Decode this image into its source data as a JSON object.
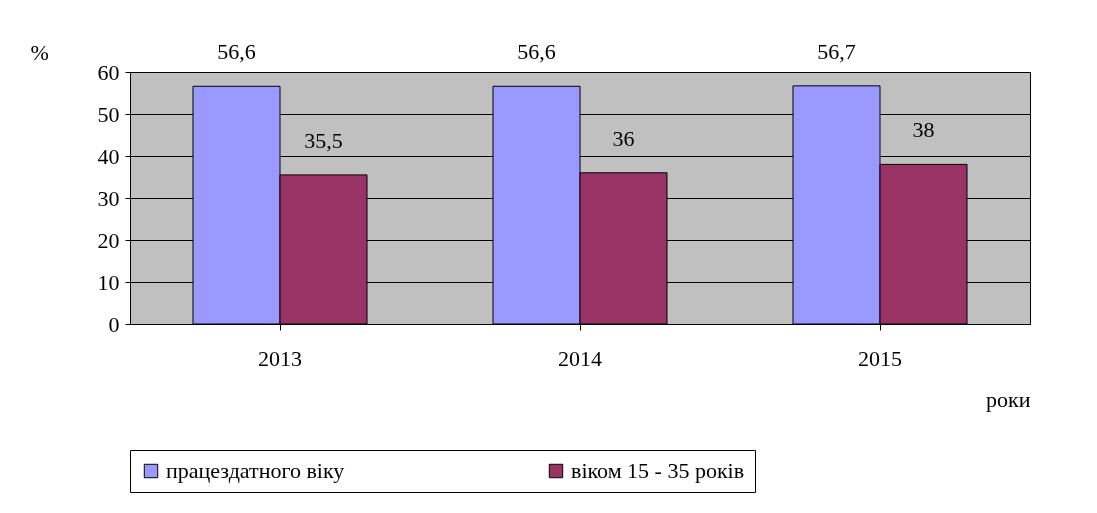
{
  "chart_data": {
    "type": "bar",
    "ylabel": "%",
    "xlabel": "роки",
    "categories": [
      "2013",
      "2014",
      "2015"
    ],
    "series": [
      {
        "name": "працездатного віку",
        "color": "#9999ff",
        "values": [
          56.6,
          56.6,
          56.7
        ],
        "value_labels": [
          "56,6",
          "56,6",
          "56,7"
        ]
      },
      {
        "name": "віком 15 - 35 років",
        "color": "#993366",
        "values": [
          35.5,
          36,
          38
        ],
        "value_labels": [
          "35,5",
          "36",
          "38"
        ]
      }
    ],
    "ylim": [
      0,
      60
    ],
    "yticks": [
      0,
      10,
      20,
      30,
      40,
      50,
      60
    ],
    "grid": "y",
    "legend": "bottom"
  }
}
